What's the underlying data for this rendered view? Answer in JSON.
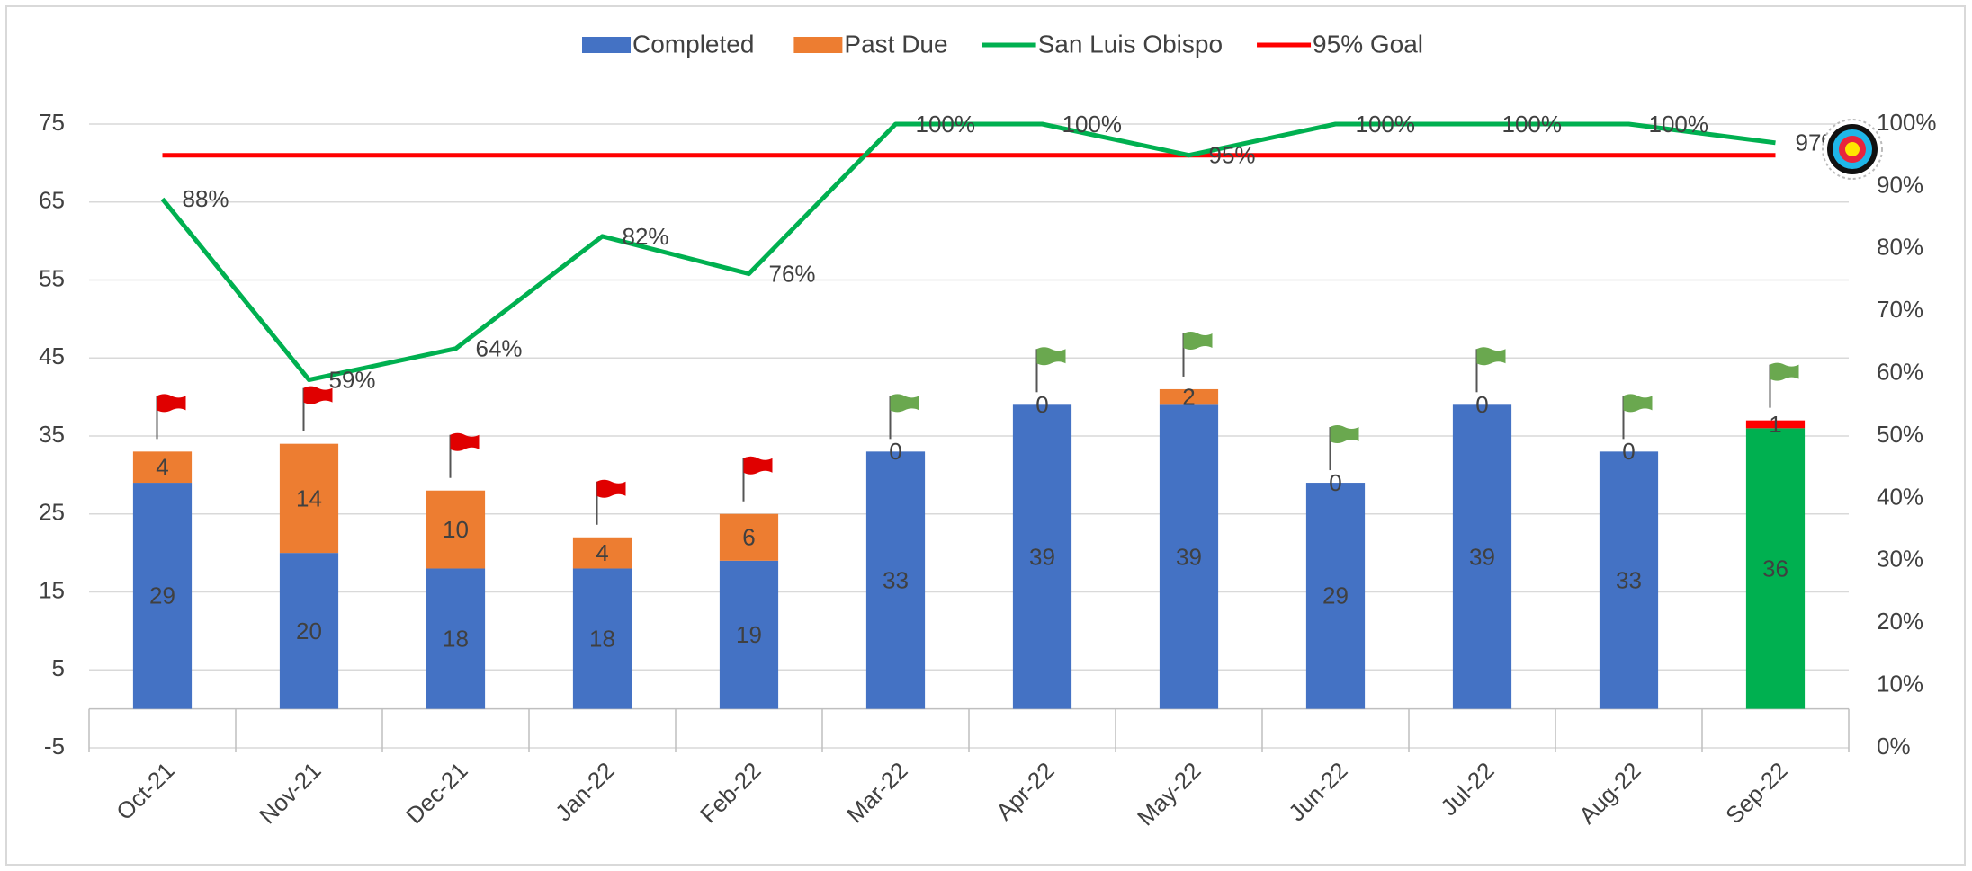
{
  "chart_data": {
    "type": "bar",
    "categories": [
      "Oct-21",
      "Nov-21",
      "Dec-21",
      "Jan-22",
      "Feb-22",
      "Mar-22",
      "Apr-22",
      "May-22",
      "Jun-22",
      "Jul-22",
      "Aug-22",
      "Sep-22"
    ],
    "series": [
      {
        "name": "Completed",
        "type": "bar",
        "color": "#4472c4",
        "colors": [
          "#4472c4",
          "#4472c4",
          "#4472c4",
          "#4472c4",
          "#4472c4",
          "#4472c4",
          "#4472c4",
          "#4472c4",
          "#4472c4",
          "#4472c4",
          "#4472c4",
          "#00b050"
        ],
        "values": [
          29,
          20,
          18,
          18,
          19,
          33,
          39,
          39,
          29,
          39,
          33,
          36
        ]
      },
      {
        "name": "Past Due",
        "type": "bar",
        "color": "#ed7d31",
        "colors": [
          "#ed7d31",
          "#ed7d31",
          "#ed7d31",
          "#ed7d31",
          "#ed7d31",
          "#ed7d31",
          "#ed7d31",
          "#ed7d31",
          "#ed7d31",
          "#ed7d31",
          "#ed7d31",
          "#ff0000"
        ],
        "values": [
          4,
          14,
          10,
          4,
          6,
          0,
          0,
          2,
          0,
          0,
          0,
          1
        ]
      },
      {
        "name": "San Luis Obispo",
        "type": "line",
        "axis": "y2",
        "color": "#00b050",
        "values": [
          88,
          59,
          64,
          82,
          76,
          100,
          100,
          95,
          100,
          100,
          100,
          97
        ],
        "value_labels": [
          "88%",
          "59%",
          "64%",
          "82%",
          "76%",
          "100%",
          "100%",
          "95%",
          "100%",
          "100%",
          "100%",
          "97%"
        ]
      },
      {
        "name": "95% Goal",
        "type": "line",
        "axis": "y2",
        "color": "#ff0000",
        "values": [
          95,
          95,
          95,
          95,
          95,
          95,
          95,
          95,
          95,
          95,
          95,
          95
        ]
      }
    ],
    "stacked": true,
    "ylim": [
      -5,
      75
    ],
    "yticks": [
      -5,
      5,
      15,
      25,
      35,
      45,
      55,
      65,
      75
    ],
    "y2lim": [
      0,
      100
    ],
    "y2ticks": [
      {
        "value": 0,
        "label": "0%"
      },
      {
        "value": 10,
        "label": "10%"
      },
      {
        "value": 20,
        "label": "20%"
      },
      {
        "value": 30,
        "label": "30%"
      },
      {
        "value": 40,
        "label": "40%"
      },
      {
        "value": 50,
        "label": "50%"
      },
      {
        "value": 60,
        "label": "60%"
      },
      {
        "value": 70,
        "label": "70%"
      },
      {
        "value": 80,
        "label": "80%"
      },
      {
        "value": 90,
        "label": "90%"
      },
      {
        "value": 100,
        "label": "100%"
      }
    ],
    "grid": true,
    "legend": "top"
  }
}
